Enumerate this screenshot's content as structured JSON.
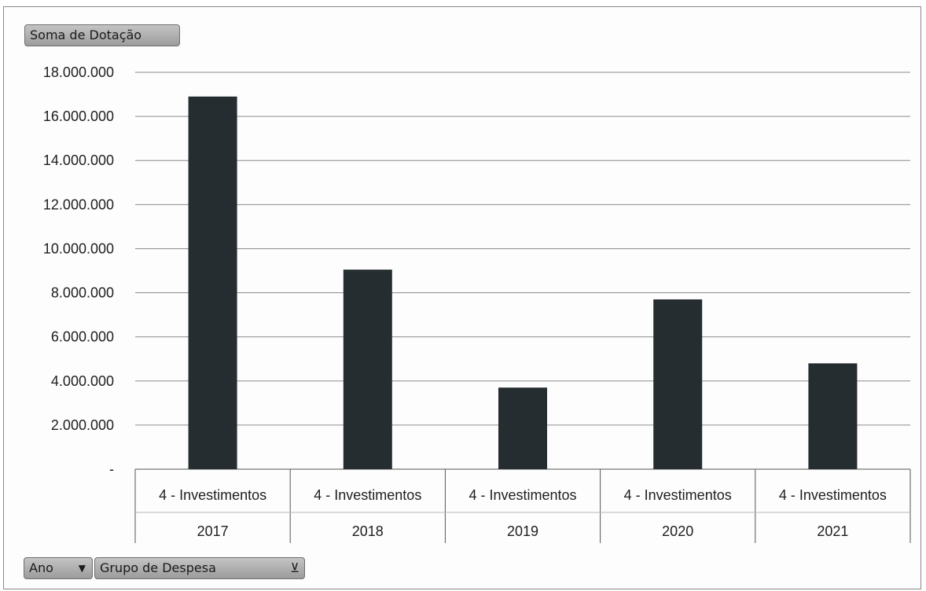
{
  "chart_data": {
    "type": "bar",
    "value_field": "Soma de Dotação",
    "row_fields": [
      {
        "label": "Ano",
        "icon": "dropdown-arrow-icon"
      },
      {
        "label": "Grupo de Despesa",
        "icon": "filter-icon"
      }
    ],
    "categories": [
      {
        "group": "4 - Investimentos",
        "year": "2017"
      },
      {
        "group": "4 - Investimentos",
        "year": "2018"
      },
      {
        "group": "4 - Investimentos",
        "year": "2019"
      },
      {
        "group": "4 - Investimentos",
        "year": "2020"
      },
      {
        "group": "4 - Investimentos",
        "year": "2021"
      }
    ],
    "values": [
      16900000,
      9050000,
      3700000,
      7700000,
      4800000
    ],
    "ylim": [
      0,
      18000000
    ],
    "yticks": [
      0,
      2000000,
      4000000,
      6000000,
      8000000,
      10000000,
      12000000,
      14000000,
      16000000,
      18000000
    ],
    "ytick_labels": [
      "-",
      "2.000.000",
      "4.000.000",
      "6.000.000",
      "8.000.000",
      "10.000.000",
      "12.000.000",
      "14.000.000",
      "16.000.000",
      "18.000.000"
    ],
    "grid": true,
    "legend": "none",
    "colors": {
      "bar": "#262d30",
      "grid": "#8c8c8c",
      "axis": "#555555"
    }
  }
}
